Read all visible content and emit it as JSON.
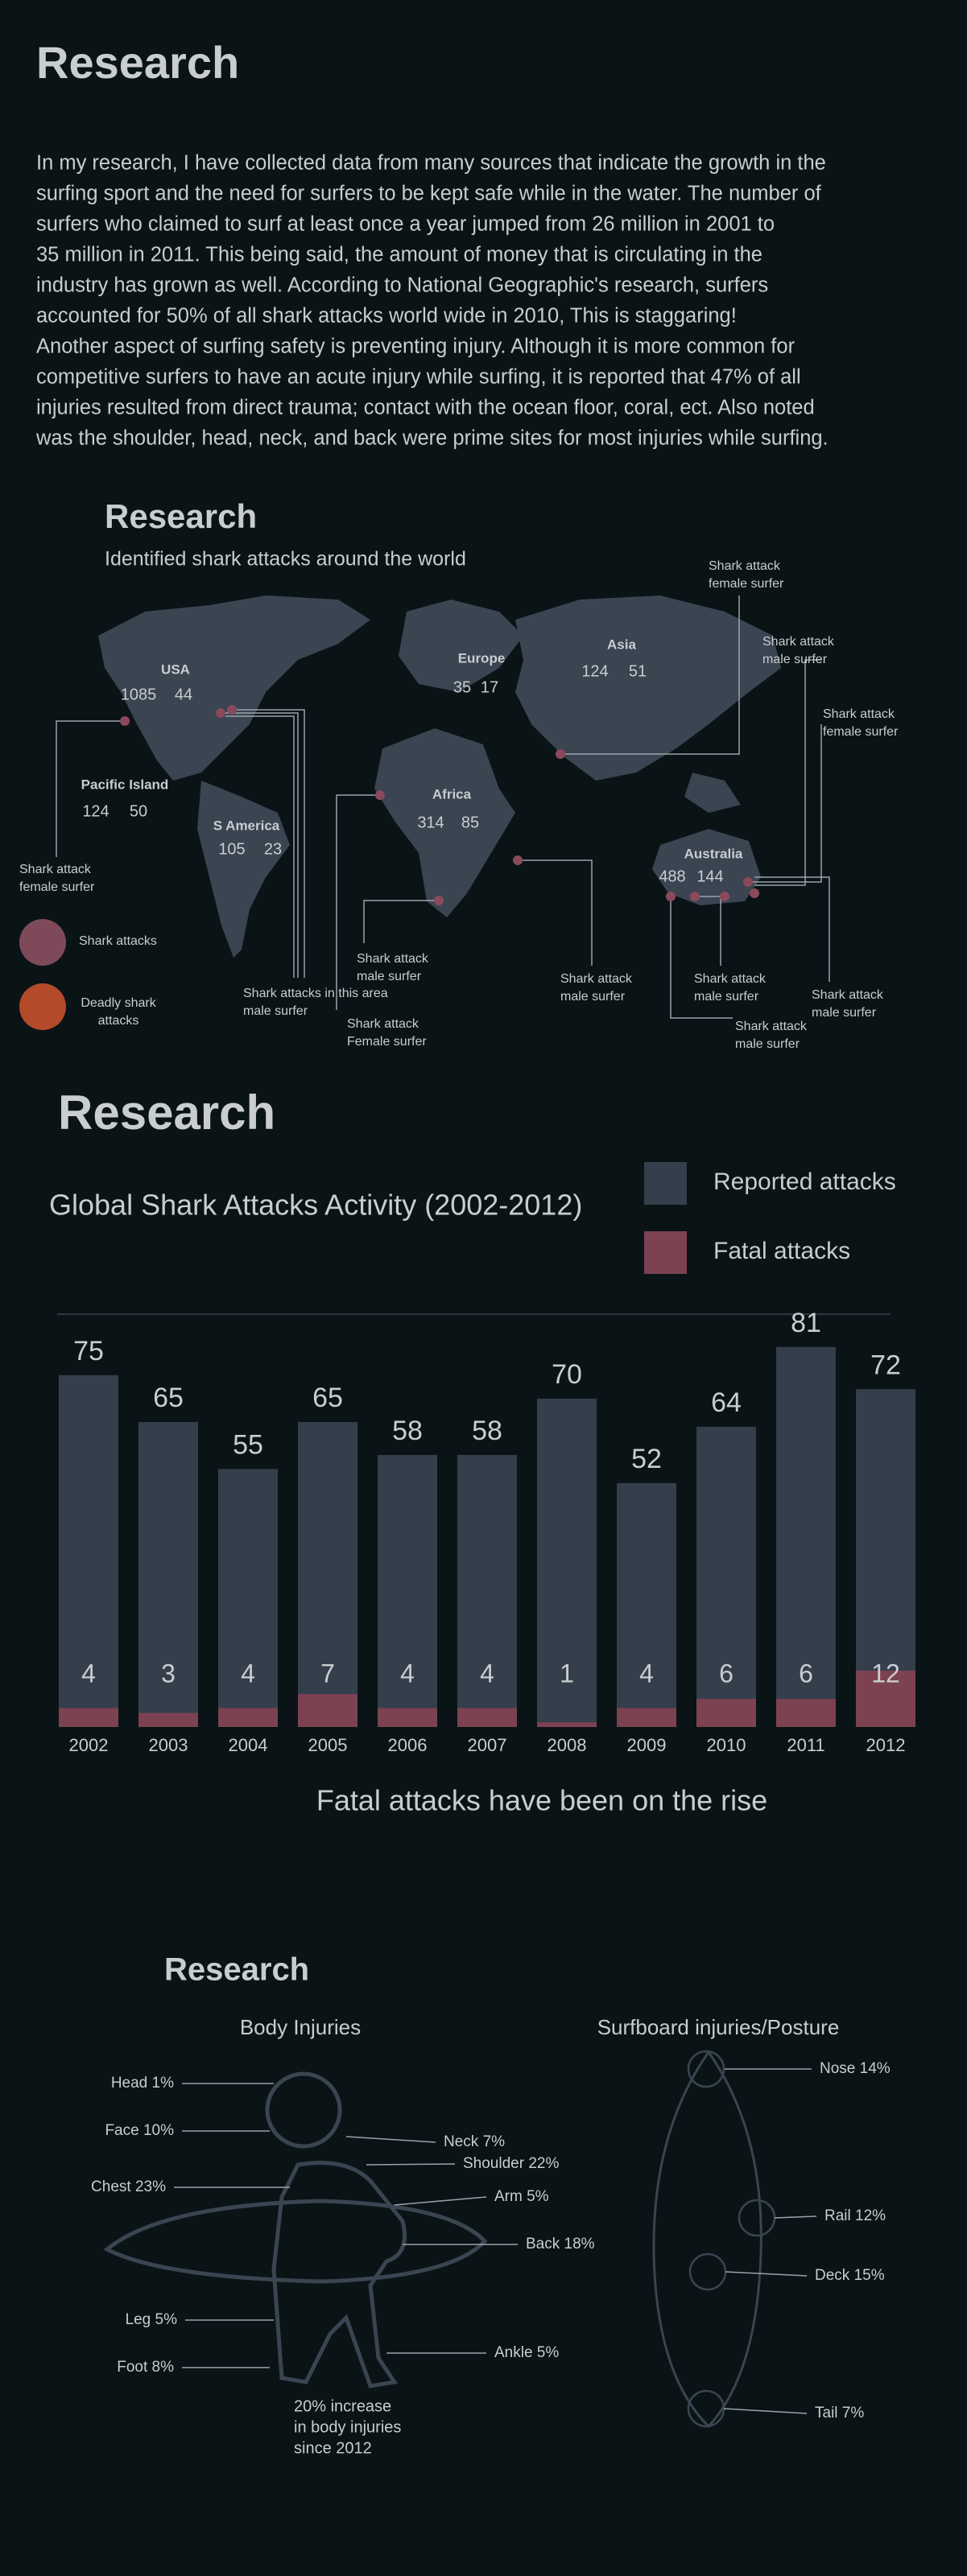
{
  "intro": {
    "heading": "Research",
    "lines": [
      "In my research, I have collected data from many sources that indicate the growth in the",
      "surfing sport and the need for surfers to be kept safe while in the water. The number of",
      "surfers who claimed to surf at least once a year jumped from 26 million in 2001 to",
      "35 million in 2011. This being said, the amount of money that is circulating in the",
      "industry has grown as well. According to National Geographic's research, surfers",
      "accounted for 50% of all shark attacks world wide in 2010, This is staggaring!",
      "Another aspect of surfing safety is preventing injury. Although it is more common for",
      "competitive surfers to have an acute injury while surfing, it is reported that 47% of all",
      "injuries resulted from direct trauma; contact with the ocean floor, coral, ect. Also noted",
      "was the shoulder, head, neck, and back were prime sites for most injuries while surfing."
    ]
  },
  "map": {
    "heading": "Research",
    "subtitle": "Identified shark attacks around the world",
    "regions": [
      {
        "name": "USA",
        "attacks": 1085,
        "deadly": 44
      },
      {
        "name": "Pacific Island",
        "attacks": 124,
        "deadly": 50
      },
      {
        "name": "S America",
        "attacks": 105,
        "deadly": 23
      },
      {
        "name": "Europe",
        "attacks": 35,
        "deadly": 17
      },
      {
        "name": "Asia",
        "attacks": 124,
        "deadly": 51
      },
      {
        "name": "Africa",
        "attacks": 314,
        "deadly": 85
      },
      {
        "name": "Australia",
        "attacks": 488,
        "deadly": 144
      }
    ],
    "legend": [
      [
        "Shark attacks"
      ],
      [
        "Deadly shark",
        "attacks"
      ]
    ],
    "callouts": [
      [
        "Shark attack",
        "female surfer"
      ],
      [
        "Shark attack",
        "male surfer"
      ],
      [
        "Shark attack",
        "female surfer"
      ],
      [
        "Shark attack",
        "female surfer"
      ],
      [
        "Shark attack",
        "male surfer"
      ],
      [
        "Shark attacks in this area",
        "male surfer"
      ],
      [
        "Shark attack",
        "Female surfer"
      ],
      [
        "Shark attack",
        "male surfer"
      ],
      [
        "Shark attack",
        "male surfer"
      ],
      [
        "Shark attack",
        "male surfer"
      ],
      [
        "Shark attack",
        "male surfer"
      ]
    ]
  },
  "chart_data": {
    "type": "bar",
    "heading": "Research",
    "title": "Global Shark Attacks Activity (2002-2012)",
    "caption": "Fatal attacks have been on the rise",
    "categories": [
      "2002",
      "2003",
      "2004",
      "2005",
      "2006",
      "2007",
      "2008",
      "2009",
      "2010",
      "2011",
      "2012"
    ],
    "series": [
      {
        "name": "Reported attacks",
        "color": "#343f4b",
        "values": [
          75,
          65,
          55,
          65,
          58,
          58,
          70,
          52,
          64,
          81,
          72
        ]
      },
      {
        "name": "Fatal attacks",
        "color": "#7d4252",
        "values": [
          4,
          3,
          4,
          7,
          4,
          4,
          1,
          4,
          6,
          6,
          12
        ]
      }
    ],
    "ylim": [
      0,
      88
    ]
  },
  "injuries": {
    "heading": "Research",
    "body_title": "Body Injuries",
    "body_labels": [
      "Head 1%",
      "Face 10%",
      "Chest 23%",
      "Neck 7%",
      "Shoulder 22%",
      "Arm 5%",
      "Back 18%",
      "Leg 5%",
      "Foot 8%",
      "Ankle 5%"
    ],
    "note": [
      "20% increase",
      "in body injuries",
      "since 2012"
    ],
    "board_title": "Surfboard injuries/Posture",
    "board_labels": [
      "Nose 14%",
      "Rail 12%",
      "Deck 15%",
      "Tail 7%"
    ]
  }
}
